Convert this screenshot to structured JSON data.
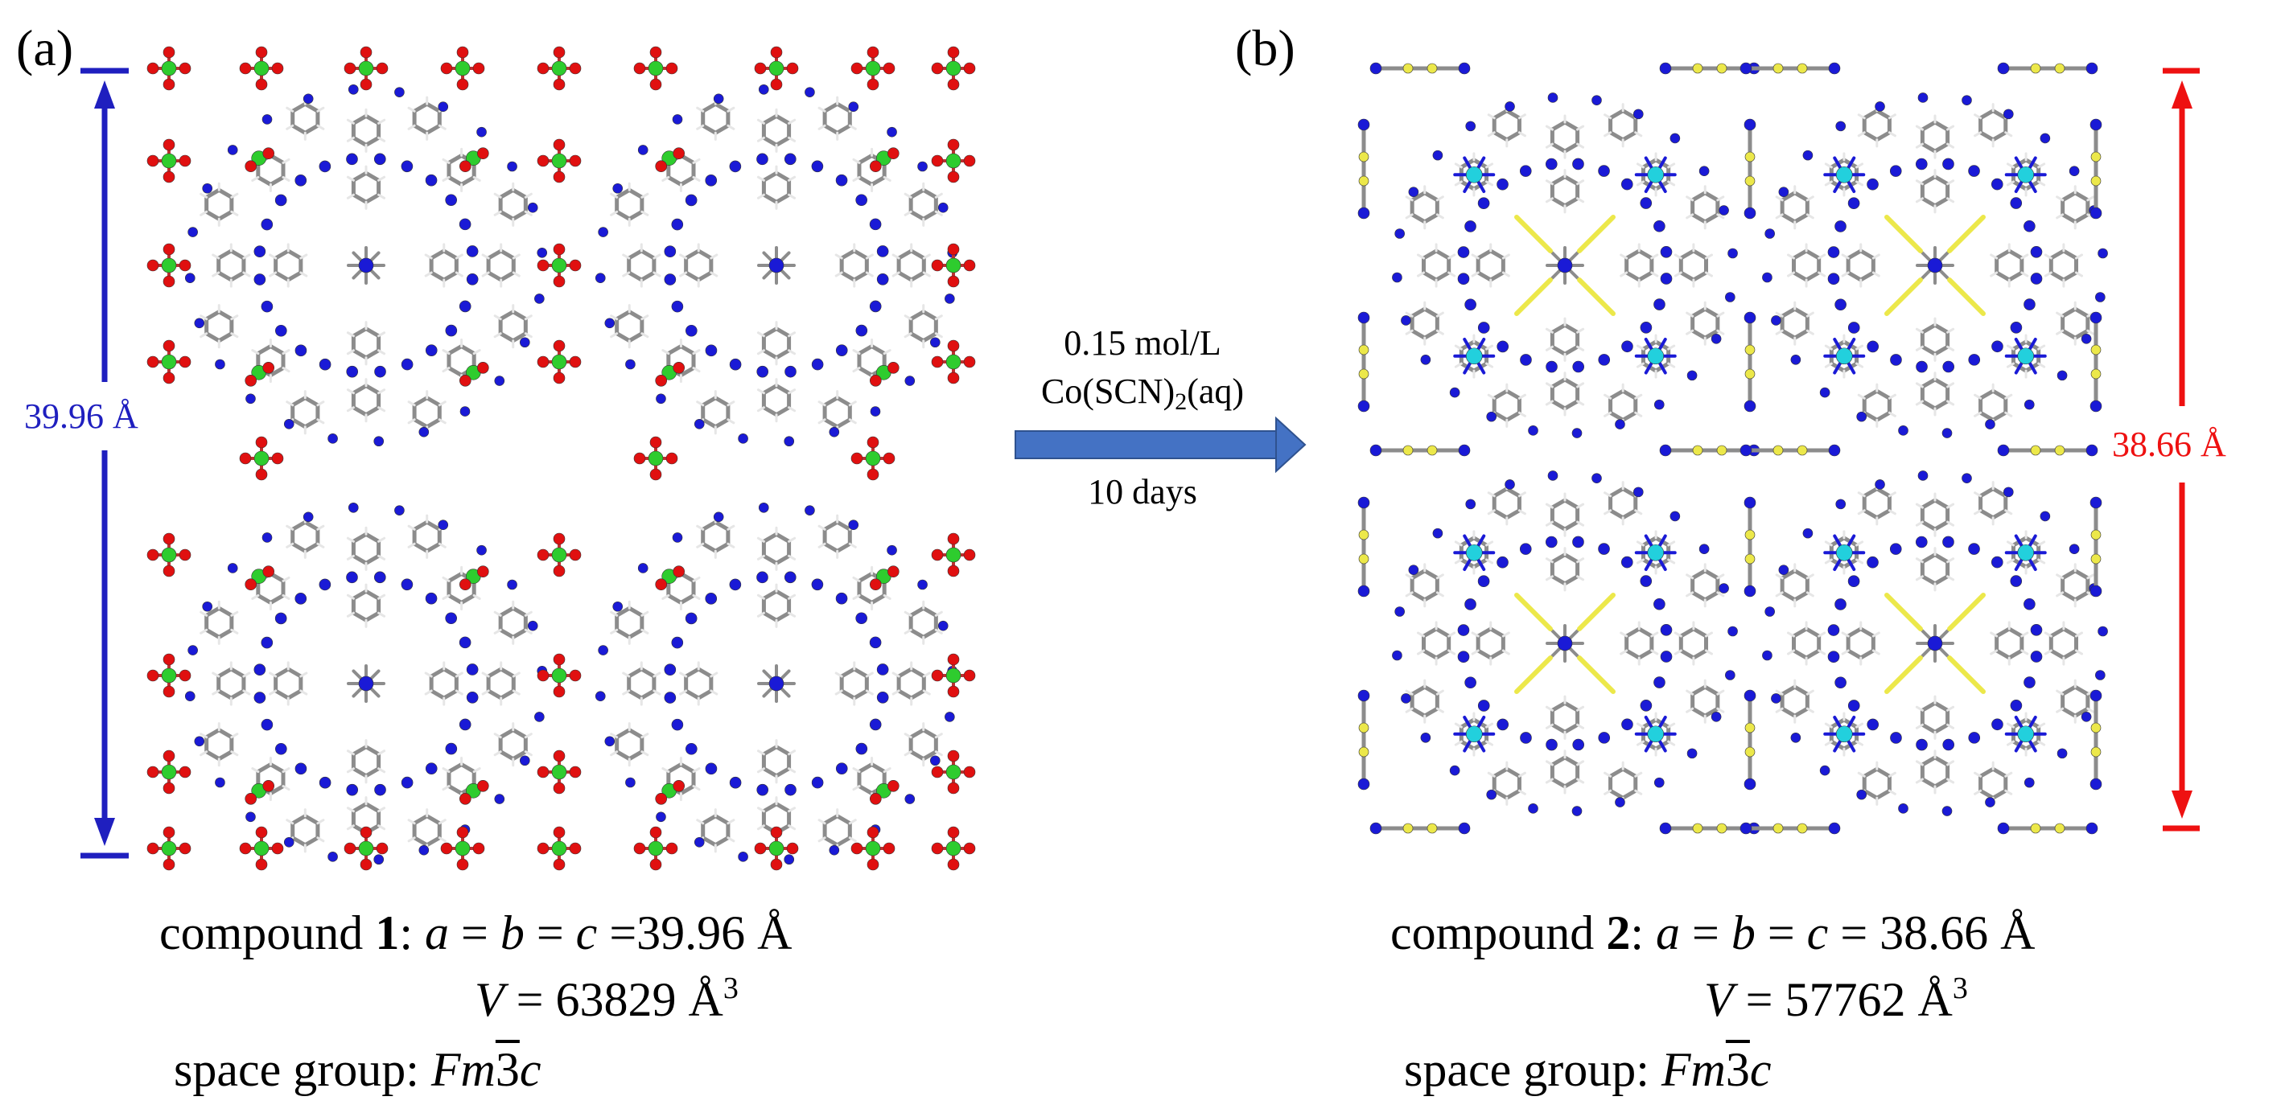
{
  "figure": {
    "panel_a": {
      "label": "(a)",
      "dimension": "39.96 Å",
      "bar_color": "#1f1fbf"
    },
    "panel_b": {
      "label": "(b)",
      "dimension": "38.66 Å",
      "bar_color": "#ee1111"
    },
    "arrow": {
      "concentration": "0.15 mol/L",
      "reagent_prefix": "Co(SCN)",
      "reagent_subscript": "2",
      "reagent_suffix": "(aq)",
      "duration": "10 days",
      "color": "#4472c4"
    },
    "compound1": {
      "prefix": "compound ",
      "number": "1",
      "cell_prefix": ": ",
      "cell_var": "a",
      "cell_eq1": " = ",
      "cell_var2": "b",
      "cell_eq2": " = ",
      "cell_var3": "c",
      "cell_value": " =39.96 Å",
      "volume_var": "V",
      "volume_value": " = 63829 Å",
      "volume_exp": "3",
      "space_group_label": "space group: ",
      "sg_part1": "Fm",
      "sg_bar": "3",
      "sg_part2": "c"
    },
    "compound2": {
      "prefix": "compound ",
      "number": "2",
      "cell_prefix": ": ",
      "cell_var": "a",
      "cell_eq1": " = ",
      "cell_var2": "b",
      "cell_eq2": " = ",
      "cell_var3": "c",
      "cell_value": " = 38.66 Å",
      "volume_var": "V",
      "volume_value": " = 57762 Å",
      "volume_exp": "3",
      "space_group_label": "space group: ",
      "sg_part1": "Fm",
      "sg_bar": "3",
      "sg_part2": "c"
    },
    "atom_colors": {
      "carbon": "#8c8c8c",
      "hydrogen": "#e6e6e6",
      "nitrogen": "#1a1ad6",
      "oxygen": "#e01010",
      "chlorine": "#2ecc2e",
      "cobalt": "#22d0dd",
      "sulfur": "#ece84a"
    }
  }
}
